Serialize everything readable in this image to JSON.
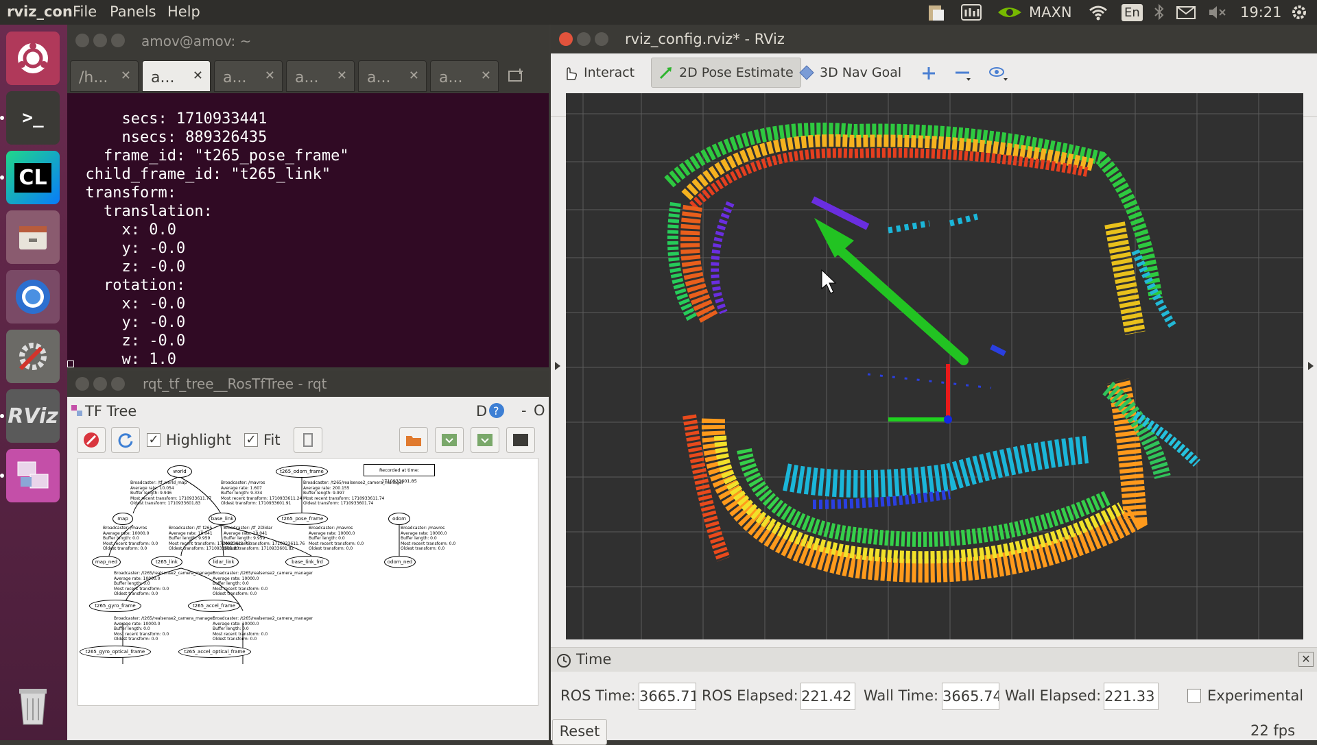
{
  "top_panel": {
    "app_name": "rviz_con",
    "menus": [
      "File",
      "Panels",
      "Help"
    ],
    "power_mode": "MAXN",
    "keyboard": "En",
    "clock": "19:21"
  },
  "launcher": {
    "items": [
      {
        "name": "ubuntu-dash-icon"
      },
      {
        "name": "terminal-icon",
        "text": ">_"
      },
      {
        "name": "clion-icon",
        "text": "CL"
      },
      {
        "name": "files-icon"
      },
      {
        "name": "chromium-icon"
      },
      {
        "name": "settings-icon"
      },
      {
        "name": "rviz-icon",
        "text": "RViz"
      },
      {
        "name": "rqt-icon"
      },
      {
        "name": "trash-icon"
      }
    ]
  },
  "terminal": {
    "title": "amov@amov: ~",
    "tabs": [
      {
        "label": "/h...",
        "active": false
      },
      {
        "label": "a...",
        "active": true
      },
      {
        "label": "a...",
        "active": false
      },
      {
        "label": "a...",
        "active": false
      },
      {
        "label": "a...",
        "active": false
      },
      {
        "label": "a...",
        "active": false
      }
    ],
    "lines": [
      "      secs: 1710933441",
      "      nsecs: 889326435",
      "    frame_id: \"t265_pose_frame\"",
      "  child_frame_id: \"t265_link\"",
      "  transform:",
      "    translation:",
      "      x: 0.0",
      "      y: -0.0",
      "      z: -0.0",
      "    rotation:",
      "      x: -0.0",
      "      y: -0.0",
      "      z: -0.0",
      "      w: 1.0",
      "---"
    ]
  },
  "rqt": {
    "title": "rqt_tf_tree__RosTfTree - rqt",
    "plugin_title": "TF Tree",
    "plugin_controls": "D",
    "highlight_label": "Highlight",
    "fit_label": "Fit",
    "highlight_checked": true,
    "fit_checked": true,
    "recorded_label": "Recorded at time: 1710933601.85",
    "nodes": [
      {
        "label": "world"
      },
      {
        "label": "t265_odom_frame"
      },
      {
        "label": "map"
      },
      {
        "label": "base_link"
      },
      {
        "label": "t265_pose_frame"
      },
      {
        "label": "odom"
      },
      {
        "label": "map_ned"
      },
      {
        "label": "t265_link"
      },
      {
        "label": "lidar_link"
      },
      {
        "label": "base_link_frd"
      },
      {
        "label": "odom_ned"
      },
      {
        "label": "t265_gyro_frame"
      },
      {
        "label": "t265_accel_frame"
      },
      {
        "label": "t265_gyro_optical_frame"
      },
      {
        "label": "t265_accel_optical_frame"
      }
    ],
    "edge_labels": [
      {
        "text": "Broadcaster: /tf_world_map\nAverage rate: 10.054\nBuffer length: 9.946\nMost recent transform: 1710933611.77\nOldest transform: 1710933601.83"
      },
      {
        "text": "Broadcaster: /mavros\nAverage rate: 1.607\nBuffer length: 9.334\nMost recent transform: 1710933611.24\nOldest transform: 1710933601.91"
      },
      {
        "text": "Broadcaster: /t265/realsense2_camera_manager\nAverage rate: 200.155\nBuffer length: 9.997\nMost recent transform: 1710933611.74\nOldest transform: 1710933601.74"
      },
      {
        "text": "Broadcaster: /mavros\nAverage rate: 10000.0\nBuffer length: 0.0\nMost recent transform: 0.0\nOldest transform: 0.0"
      },
      {
        "text": "Broadcaster: /tf_t265\nAverage rate: 10.041\nBuffer length: 9.959\nMost recent transform: 1710933611.76\nOldest transform: 1710933601.80"
      },
      {
        "text": "Broadcaster: /tf_2Dlidar\nAverage rate: 10.041\nBuffer length: 9.959\nMost recent transform: 1710933611.76\nOldest transform: 1710933601.82"
      },
      {
        "text": "Broadcaster: /mavros\nAverage rate: 10000.0\nBuffer length: 0.0\nMost recent transform: 0.0\nOldest transform: 0.0"
      },
      {
        "text": "Broadcaster: /mavros\nAverage rate: 10000.0\nBuffer length: 0.0\nMost recent transform: 0.0\nOldest transform: 0.0"
      },
      {
        "text": "Broadcaster: /t265/realsense2_camera_manager\nAverage rate: 10000.0\nBuffer length: 0.0\nMost recent transform: 0.0\nOldest transform: 0.0"
      },
      {
        "text": "Broadcaster: /t265/realsense2_camera_manager\nAverage rate: 10000.0\nBuffer length: 0.0\nMost recent transform: 0.0\nOldest transform: 0.0"
      },
      {
        "text": "Broadcaster: /t265/realsense2_camera_manager\nAverage rate: 10000.0\nBuffer length: 0.0\nMost recent transform: 0.0\nOldest transform: 0.0"
      },
      {
        "text": "Broadcaster: /t265/realsense2_camera_manager\nAverage rate: 10000.0\nBuffer length: 0.0\nMost recent transform: 0.0\nOldest transform: 0.0"
      }
    ]
  },
  "rviz": {
    "title": "rviz_config.rviz* - RViz",
    "tools": {
      "interact": "Interact",
      "pose_estimate": "2D Pose Estimate",
      "nav_goal": "3D Nav Goal"
    },
    "time_panel": {
      "title": "Time",
      "ros_time_label": "ROS Time:",
      "ros_time": "3665.71",
      "ros_elapsed_label": "ROS Elapsed:",
      "ros_elapsed": "221.42",
      "wall_time_label": "Wall Time:",
      "wall_time": "3665.74",
      "wall_elapsed_label": "Wall Elapsed:",
      "wall_elapsed": "221.33",
      "experimental_label": "Experimental",
      "experimental_checked": false,
      "reset_label": "Reset",
      "fps": "22 fps"
    }
  }
}
